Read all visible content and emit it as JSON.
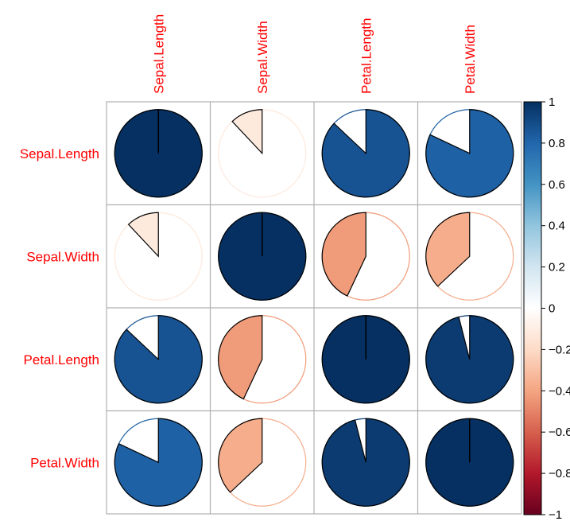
{
  "chart_data": {
    "type": "heatmap",
    "style": "correlation-pie-matrix",
    "variables": [
      "Sepal.Length",
      "Sepal.Width",
      "Petal.Length",
      "Petal.Width"
    ],
    "matrix": [
      [
        1.0,
        -0.12,
        0.87,
        0.82
      ],
      [
        -0.12,
        1.0,
        -0.43,
        -0.37
      ],
      [
        0.87,
        -0.43,
        1.0,
        0.96
      ],
      [
        0.82,
        -0.37,
        0.96,
        1.0
      ]
    ],
    "colorbar": {
      "range": [
        -1,
        1
      ],
      "ticks": [
        "1",
        "0.8",
        "0.6",
        "0.4",
        "0.2",
        "0",
        "−0.2",
        "−0.4",
        "−0.6",
        "−0.8",
        "−1"
      ],
      "stops": [
        "#67001F",
        "#B2182B",
        "#D6604D",
        "#F4A582",
        "#FDDBC7",
        "#FFFFFF",
        "#D1E5F0",
        "#92C5DE",
        "#4393C3",
        "#2166AC",
        "#053061"
      ]
    },
    "label_color": "#FF0000",
    "grid_color": "#B0B0B0"
  }
}
